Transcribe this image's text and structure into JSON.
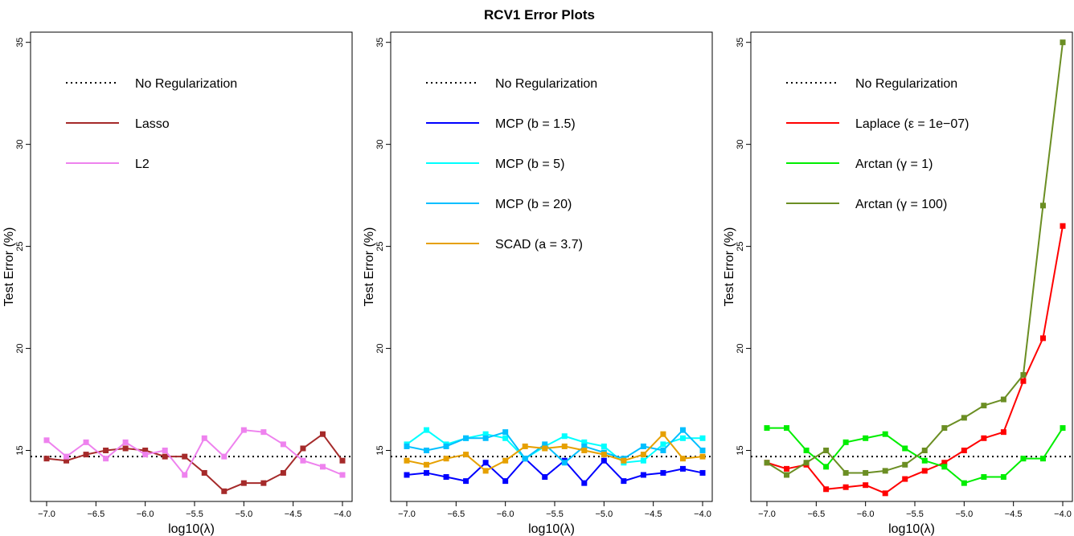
{
  "title": "RCV1 Error Plots",
  "chart_data": [
    {
      "type": "line",
      "xlabel": "log10(λ)",
      "ylabel": "Test Error (%)",
      "xlim": [
        -7.0,
        -4.0
      ],
      "ylim": [
        12.5,
        35.5
      ],
      "xticks": [
        -7.0,
        -6.5,
        -6.0,
        -5.5,
        -5.0,
        -4.5,
        -4.0
      ],
      "yticks": [
        15,
        20,
        25,
        30,
        35
      ],
      "baseline": {
        "name": "No Regularization",
        "value": 14.7,
        "color": "#000000",
        "style": "dotted"
      },
      "legend_position": "top-left",
      "x": [
        -7.0,
        -6.8,
        -6.6,
        -6.4,
        -6.2,
        -6.0,
        -5.8,
        -5.6,
        -5.4,
        -5.2,
        -5.0,
        -4.8,
        -4.6,
        -4.4,
        -4.2,
        -4.0
      ],
      "series": [
        {
          "name": "Lasso",
          "color": "#a52a2a",
          "values": [
            14.6,
            14.5,
            14.8,
            15.0,
            15.1,
            15.0,
            14.7,
            14.7,
            13.9,
            13.0,
            13.4,
            13.4,
            13.9,
            15.1,
            15.8,
            14.5
          ]
        },
        {
          "name": "L2",
          "color": "#ee82ee",
          "values": [
            15.5,
            14.7,
            15.4,
            14.6,
            15.4,
            14.8,
            15.0,
            13.8,
            15.6,
            14.7,
            16.0,
            15.9,
            15.3,
            14.5,
            14.2,
            13.8
          ]
        }
      ]
    },
    {
      "type": "line",
      "xlabel": "log10(λ)",
      "ylabel": "Test Error (%)",
      "xlim": [
        -7.0,
        -4.0
      ],
      "ylim": [
        12.5,
        35.5
      ],
      "xticks": [
        -7.0,
        -6.5,
        -6.0,
        -5.5,
        -5.0,
        -4.5,
        -4.0
      ],
      "yticks": [
        15,
        20,
        25,
        30,
        35
      ],
      "baseline": {
        "name": "No Regularization",
        "value": 14.7,
        "color": "#000000",
        "style": "dotted"
      },
      "legend_position": "top-left",
      "x": [
        -7.0,
        -6.8,
        -6.6,
        -6.4,
        -6.2,
        -6.0,
        -5.8,
        -5.6,
        -5.4,
        -5.2,
        -5.0,
        -4.8,
        -4.6,
        -4.4,
        -4.2,
        -4.0
      ],
      "series": [
        {
          "name": "MCP (b = 1.5)",
          "color": "#0000ff",
          "values": [
            13.8,
            13.9,
            13.7,
            13.5,
            14.4,
            13.5,
            14.6,
            13.7,
            14.5,
            13.4,
            14.5,
            13.5,
            13.8,
            13.9,
            14.1,
            13.9
          ]
        },
        {
          "name": "MCP (b = 5)",
          "color": "#00ffff",
          "values": [
            15.3,
            16.0,
            15.3,
            15.6,
            15.8,
            15.6,
            14.6,
            15.2,
            15.7,
            15.4,
            15.2,
            14.4,
            14.5,
            15.3,
            15.6,
            15.6
          ]
        },
        {
          "name": "MCP (b = 20)",
          "color": "#00bfff",
          "values": [
            15.2,
            15.0,
            15.2,
            15.6,
            15.6,
            15.9,
            14.6,
            15.3,
            14.4,
            15.2,
            14.9,
            14.6,
            15.2,
            15.0,
            16.0,
            15.0
          ]
        },
        {
          "name": "SCAD (a = 3.7)",
          "color": "#e6a000",
          "values": [
            14.5,
            14.3,
            14.6,
            14.8,
            14.0,
            14.5,
            15.2,
            15.1,
            15.2,
            15.0,
            14.8,
            14.5,
            14.8,
            15.8,
            14.6,
            14.7
          ]
        }
      ]
    },
    {
      "type": "line",
      "xlabel": "log10(λ)",
      "ylabel": "Test Error (%)",
      "xlim": [
        -7.0,
        -4.0
      ],
      "ylim": [
        12.5,
        35.5
      ],
      "xticks": [
        -7.0,
        -6.5,
        -6.0,
        -5.5,
        -5.0,
        -4.5,
        -4.0
      ],
      "yticks": [
        15,
        20,
        25,
        30,
        35
      ],
      "baseline": {
        "name": "No Regularization",
        "value": 14.7,
        "color": "#000000",
        "style": "dotted"
      },
      "legend_position": "top-left",
      "x": [
        -7.0,
        -6.8,
        -6.6,
        -6.4,
        -6.2,
        -6.0,
        -5.8,
        -5.6,
        -5.4,
        -5.2,
        -5.0,
        -4.8,
        -4.6,
        -4.4,
        -4.2,
        -4.0
      ],
      "series": [
        {
          "name": "Laplace (ε = 1e−07)",
          "color": "#ff0000",
          "values": [
            14.4,
            14.1,
            14.3,
            13.1,
            13.2,
            13.3,
            12.9,
            13.6,
            14.0,
            14.4,
            15.0,
            15.6,
            15.9,
            18.4,
            20.5,
            26.0
          ]
        },
        {
          "name": "Arctan (γ = 1)",
          "color": "#00ee00",
          "values": [
            16.1,
            16.1,
            15.0,
            14.2,
            15.4,
            15.6,
            15.8,
            15.1,
            14.5,
            14.2,
            13.4,
            13.7,
            13.7,
            14.6,
            14.6,
            16.1
          ]
        },
        {
          "name": "Arctan (γ = 100)",
          "color": "#6b8e23",
          "values": [
            14.4,
            13.8,
            14.4,
            15.0,
            13.9,
            13.9,
            14.0,
            14.3,
            15.0,
            16.1,
            16.6,
            17.2,
            17.5,
            18.7,
            27.0,
            35.0
          ]
        }
      ]
    }
  ]
}
